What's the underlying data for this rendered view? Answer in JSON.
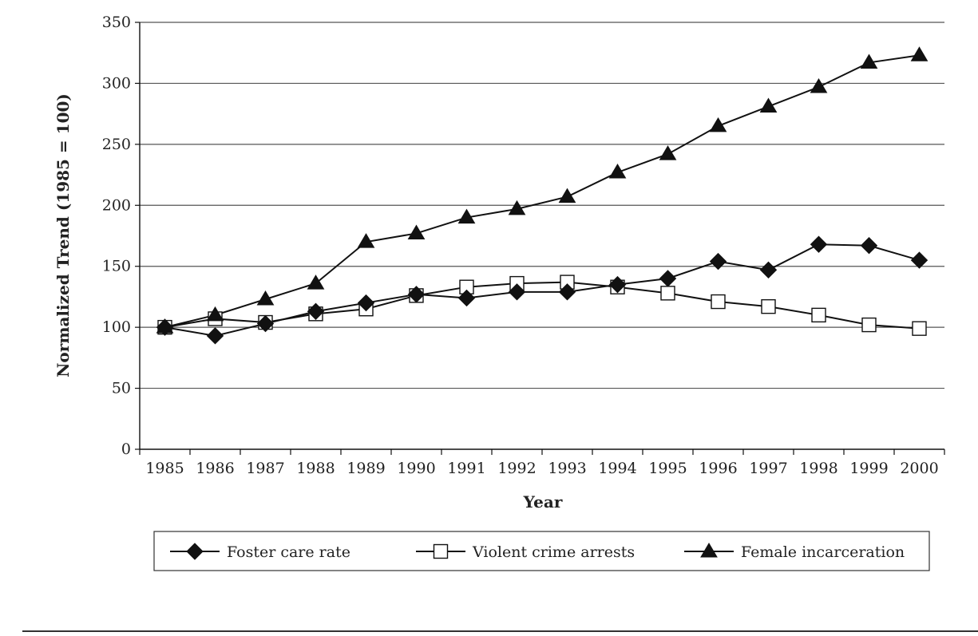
{
  "chart_data": {
    "type": "line",
    "xlabel": "Year",
    "ylabel": "Normalized Trend (1985 = 100)",
    "ylim": [
      0,
      350
    ],
    "yticks": [
      0,
      50,
      100,
      150,
      200,
      250,
      300,
      350
    ],
    "categories": [
      "1985",
      "1986",
      "1987",
      "1988",
      "1989",
      "1990",
      "1991",
      "1992",
      "1993",
      "1994",
      "1995",
      "1996",
      "1997",
      "1998",
      "1999",
      "2000"
    ],
    "grid": true,
    "legend_position": "bottom",
    "series": [
      {
        "name": "Foster care rate",
        "marker": "diamond-filled",
        "values": [
          100,
          93,
          103,
          113,
          120,
          127,
          124,
          129,
          129,
          135,
          140,
          154,
          147,
          168,
          167,
          155
        ]
      },
      {
        "name": "Violent crime arrests",
        "marker": "square-open",
        "values": [
          100,
          107,
          104,
          111,
          115,
          126,
          133,
          136,
          137,
          133,
          128,
          121,
          117,
          110,
          102,
          99
        ]
      },
      {
        "name": "Female incarceration",
        "marker": "triangle-filled",
        "values": [
          100,
          110,
          123,
          136,
          170,
          177,
          190,
          197,
          207,
          227,
          242,
          265,
          281,
          297,
          317,
          323
        ]
      }
    ]
  },
  "colors": {
    "line": "#111111",
    "grid": "#555555",
    "open_fill": "#ffffff"
  }
}
